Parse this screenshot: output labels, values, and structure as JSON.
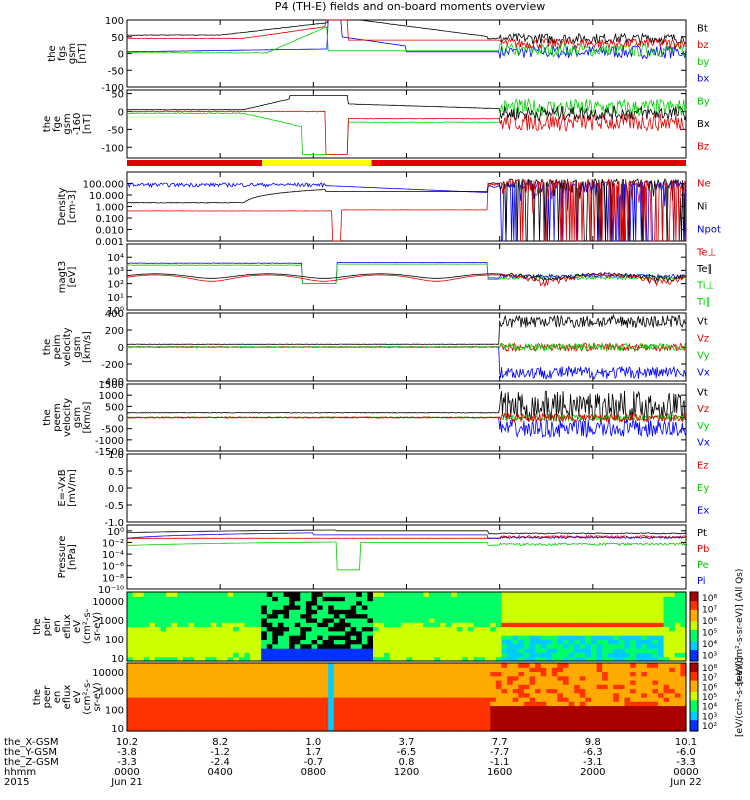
{
  "title": "P4 (TH-E) fields and on-board moments overview",
  "colors": {
    "black": "#000000",
    "red": "#e00000",
    "green": "#00d000",
    "blue": "#0000ff",
    "yellow": "#ffff00"
  },
  "chart_data": {
    "type": "line",
    "time_axis": {
      "tick_hours": [
        0,
        4,
        8,
        12,
        16,
        20,
        24
      ],
      "rows": [
        {
          "label": "the_X-GSM",
          "values": [
            "10.2",
            "8.2",
            "1.0",
            "3.7",
            "7.7",
            "9.8",
            "10.1"
          ]
        },
        {
          "label": "the_Y-GSM",
          "values": [
            "-3.8",
            "-1.2",
            "1.7",
            "-6.5",
            "-7.7",
            "-6.3",
            "-6.0"
          ]
        },
        {
          "label": "the_Z-GSM",
          "values": [
            "-3.3",
            "-2.4",
            "-0.7",
            "0.8",
            "-1.1",
            "-3.1",
            "-3.3"
          ]
        },
        {
          "label": "hhmm",
          "values": [
            "0000",
            "0400",
            "0800",
            "1200",
            "1600",
            "2000",
            "0000"
          ]
        }
      ],
      "date_label": "2015",
      "date_start": "Jun 21",
      "date_end": "Jun 22"
    },
    "panels": [
      {
        "id": "fgs",
        "ylabel": [
          "the",
          "fgs",
          "gsm",
          "[nT]"
        ],
        "scale": "linear",
        "ylim": [
          -100,
          100
        ],
        "ticks": [
          {
            "v": 100,
            "t": "100"
          },
          {
            "v": 50,
            "t": "50"
          },
          {
            "v": 0,
            "t": "0"
          },
          {
            "v": -50,
            "t": "-50"
          },
          {
            "v": -100,
            "t": "-100"
          }
        ],
        "legend": [
          {
            "text": "Bt",
            "color": "black"
          },
          {
            "text": "bz",
            "color": "red"
          },
          {
            "text": "by",
            "color": "green"
          },
          {
            "text": "bx",
            "color": "blue"
          }
        ]
      },
      {
        "id": "fge",
        "ylabel": [
          "the",
          "fge",
          "gsm",
          "-160",
          "[nT]"
        ],
        "scale": "linear",
        "ylim": [
          -130,
          60
        ],
        "ticks": [
          {
            "v": 50,
            "t": "50"
          },
          {
            "v": 0,
            "t": "0"
          },
          {
            "v": -50,
            "t": "-50"
          },
          {
            "v": -100,
            "t": "-100"
          }
        ],
        "legend": [
          {
            "text": "By",
            "color": "green"
          },
          {
            "text": "Bx",
            "color": "black"
          },
          {
            "text": "Bz",
            "color": "red"
          }
        ]
      },
      {
        "id": "density",
        "ylabel": [
          "Density",
          "[cm-3]"
        ],
        "scale": "log",
        "ylim": [
          0.001,
          1000
        ],
        "ticks": [
          {
            "v": 100,
            "t": "100.000"
          },
          {
            "v": 10,
            "t": "10.000"
          },
          {
            "v": 1,
            "t": "1.000"
          },
          {
            "v": 0.1,
            "t": "0.100"
          },
          {
            "v": 0.01,
            "t": "0.010"
          },
          {
            "v": 0.001,
            "t": "0.001"
          }
        ],
        "legend": [
          {
            "text": "Ne",
            "color": "red"
          },
          {
            "text": "Ni",
            "color": "black"
          },
          {
            "text": "Npot",
            "color": "blue"
          }
        ]
      },
      {
        "id": "temp",
        "ylabel": [
          "magt3",
          "[eV]"
        ],
        "scale": "log",
        "ylim": [
          1,
          100000
        ],
        "ticks": [
          {
            "v": 10000,
            "t": "10⁴"
          },
          {
            "v": 1000,
            "t": "10³"
          },
          {
            "v": 100,
            "t": "10²"
          },
          {
            "v": 10,
            "t": "10¹"
          },
          {
            "v": 1,
            "t": "10⁰"
          }
        ],
        "legend": [
          {
            "text": "Te⊥",
            "color": "red"
          },
          {
            "text": "Te∥",
            "color": "black"
          },
          {
            "text": "Ti⊥",
            "color": "green"
          },
          {
            "text": "Ti∥",
            "color": "green"
          }
        ]
      },
      {
        "id": "peim",
        "ylabel": [
          "the",
          "peim",
          "velocity",
          "gsm",
          "[km/s]"
        ],
        "scale": "linear",
        "ylim": [
          -400,
          400
        ],
        "ticks": [
          {
            "v": 400,
            "t": "400"
          },
          {
            "v": 200,
            "t": "200"
          },
          {
            "v": 0,
            "t": "0"
          },
          {
            "v": -200,
            "t": "-200"
          },
          {
            "v": -400,
            "t": "-400"
          }
        ],
        "legend": [
          {
            "text": "Vt",
            "color": "black"
          },
          {
            "text": "Vz",
            "color": "red"
          },
          {
            "text": "Vy",
            "color": "green"
          },
          {
            "text": "Vx",
            "color": "blue"
          }
        ]
      },
      {
        "id": "peem",
        "ylabel": [
          "the",
          "peem",
          "velocity",
          "gsm",
          "[km/s]"
        ],
        "scale": "linear",
        "ylim": [
          -1500,
          1500
        ],
        "ticks": [
          {
            "v": 1500,
            "t": "1500"
          },
          {
            "v": 1000,
            "t": "1000"
          },
          {
            "v": 500,
            "t": "500"
          },
          {
            "v": 0,
            "t": "0"
          },
          {
            "v": -500,
            "t": "-500"
          },
          {
            "v": -1000,
            "t": "-1000"
          },
          {
            "v": -1500,
            "t": "-1500"
          }
        ],
        "legend": [
          {
            "text": "Vt",
            "color": "black"
          },
          {
            "text": "Vz",
            "color": "red"
          },
          {
            "text": "Vy",
            "color": "green"
          },
          {
            "text": "Vx",
            "color": "blue"
          }
        ]
      },
      {
        "id": "efield",
        "ylabel": [
          "E=-VxB",
          "[mV/m]"
        ],
        "scale": "linear",
        "ylim": [
          -1,
          1
        ],
        "ticks": [
          {
            "v": 1,
            "t": "1.0"
          },
          {
            "v": 0.5,
            "t": "0.5"
          },
          {
            "v": 0,
            "t": "0.0"
          },
          {
            "v": -0.5,
            "t": "-0.5"
          },
          {
            "v": -1,
            "t": "-1.0"
          }
        ],
        "legend": [
          {
            "text": "Ez",
            "color": "red"
          },
          {
            "text": "Ey",
            "color": "green"
          },
          {
            "text": "Ex",
            "color": "blue"
          }
        ]
      },
      {
        "id": "pressure",
        "ylabel": [
          "Pressure",
          "[nPa]"
        ],
        "scale": "log",
        "ylim": [
          1e-10,
          10
        ],
        "ticks": [
          {
            "v": 1,
            "t": "10⁰"
          },
          {
            "v": 0.01,
            "t": "10⁻²"
          },
          {
            "v": 0.0001,
            "t": "10⁻⁴"
          },
          {
            "v": 1e-06,
            "t": "10⁻⁶"
          },
          {
            "v": 1e-08,
            "t": "10⁻⁸"
          },
          {
            "v": 1e-10,
            "t": "10⁻¹⁰"
          }
        ],
        "legend": [
          {
            "text": "Pt",
            "color": "black"
          },
          {
            "text": "Pb",
            "color": "red"
          },
          {
            "text": "Pe",
            "color": "green"
          },
          {
            "text": "Pi",
            "color": "blue"
          }
        ]
      },
      {
        "id": "peir",
        "ylabel": [
          "the",
          "peir",
          "en",
          "eflux",
          "eV",
          "(cm²-s-",
          "sr-eV)"
        ],
        "scale": "log",
        "ylim": [
          7,
          30000
        ],
        "ticks": [
          {
            "v": 10000,
            "t": "10000"
          },
          {
            "v": 1000,
            "t": "1000"
          },
          {
            "v": 100,
            "t": "100"
          },
          {
            "v": 10,
            "t": "10"
          }
        ],
        "colorbar": {
          "ticks": [
            "10⁸",
            "10⁷",
            "10⁶",
            "10⁵",
            "10⁴",
            "10³"
          ],
          "label": "[eV/(cm²-s-sr-eV)]  (All Qs)"
        }
      },
      {
        "id": "peer",
        "ylabel": [
          "the",
          "peer",
          "en",
          "eflux",
          "eV",
          "(cm²-s-",
          "sr-eV)"
        ],
        "scale": "log",
        "ylim": [
          7,
          30000
        ],
        "ticks": [
          {
            "v": 10000,
            "t": "10000"
          },
          {
            "v": 1000,
            "t": "1000"
          },
          {
            "v": 100,
            "t": "100"
          },
          {
            "v": 10,
            "t": "10"
          }
        ],
        "colorbar": {
          "ticks": [
            "10⁸",
            "10⁷",
            "10⁶",
            "10⁵",
            "10⁴",
            "10³",
            "10²"
          ],
          "label": "[eV/(cm²-s-sr-eV)]"
        }
      }
    ],
    "mode_bar": {
      "segments": [
        {
          "from": 0,
          "to": 5.8,
          "color": "red"
        },
        {
          "from": 5.8,
          "to": 10.5,
          "color": "yellow"
        },
        {
          "from": 10.5,
          "to": 24,
          "color": "red"
        }
      ]
    }
  }
}
